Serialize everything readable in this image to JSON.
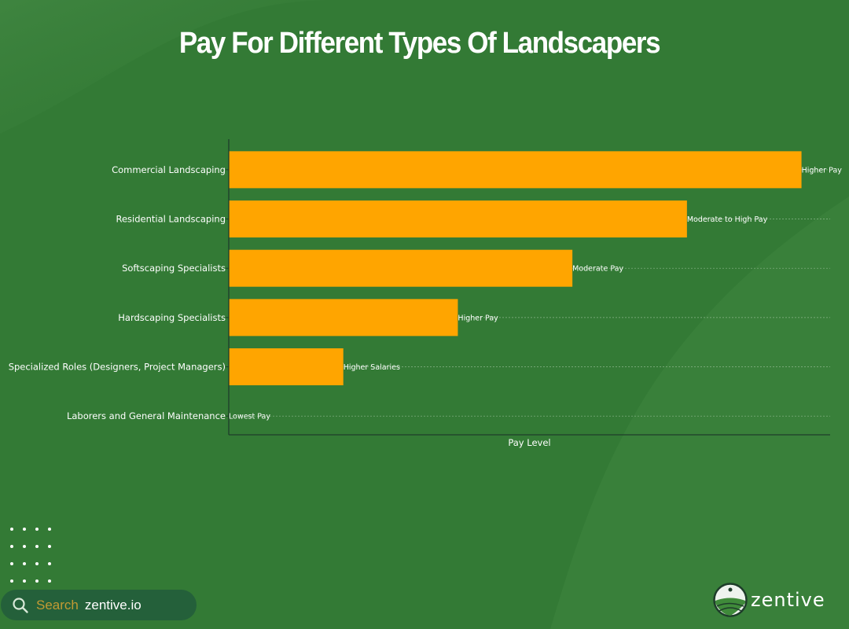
{
  "colors": {
    "background": "#337a35",
    "bar": "#ffa500",
    "text": "#ffffff",
    "search_bg": "#24603a",
    "search_label": "#c39a33"
  },
  "chart_data": {
    "type": "bar",
    "orientation": "horizontal",
    "title": "Pay For Different Types Of Landscapers",
    "xlabel": "Pay Level",
    "ylabel": "",
    "categories": [
      "Commercial Landscaping",
      "Residential Landscaping",
      "Softscaping Specialists",
      "Hardscaping Specialists",
      "Specialized Roles (Designers, Project Managers)",
      "Laborers and General Maintenance"
    ],
    "values": [
      5,
      4,
      3,
      2,
      1,
      0
    ],
    "data_labels": [
      "Higher Pay",
      "Moderate to High Pay",
      "Moderate Pay",
      "Higher Pay",
      "Higher Salaries",
      "Lowest Pay"
    ],
    "xlim": [
      0,
      5.25
    ],
    "x_ticks_shown": false,
    "grid": "horizontal dashed"
  },
  "footer": {
    "search_icon": "search-icon",
    "search_label": "Search",
    "search_url": "zentive.io",
    "brand": "zentive",
    "logo_icon": "zentive-logo"
  }
}
